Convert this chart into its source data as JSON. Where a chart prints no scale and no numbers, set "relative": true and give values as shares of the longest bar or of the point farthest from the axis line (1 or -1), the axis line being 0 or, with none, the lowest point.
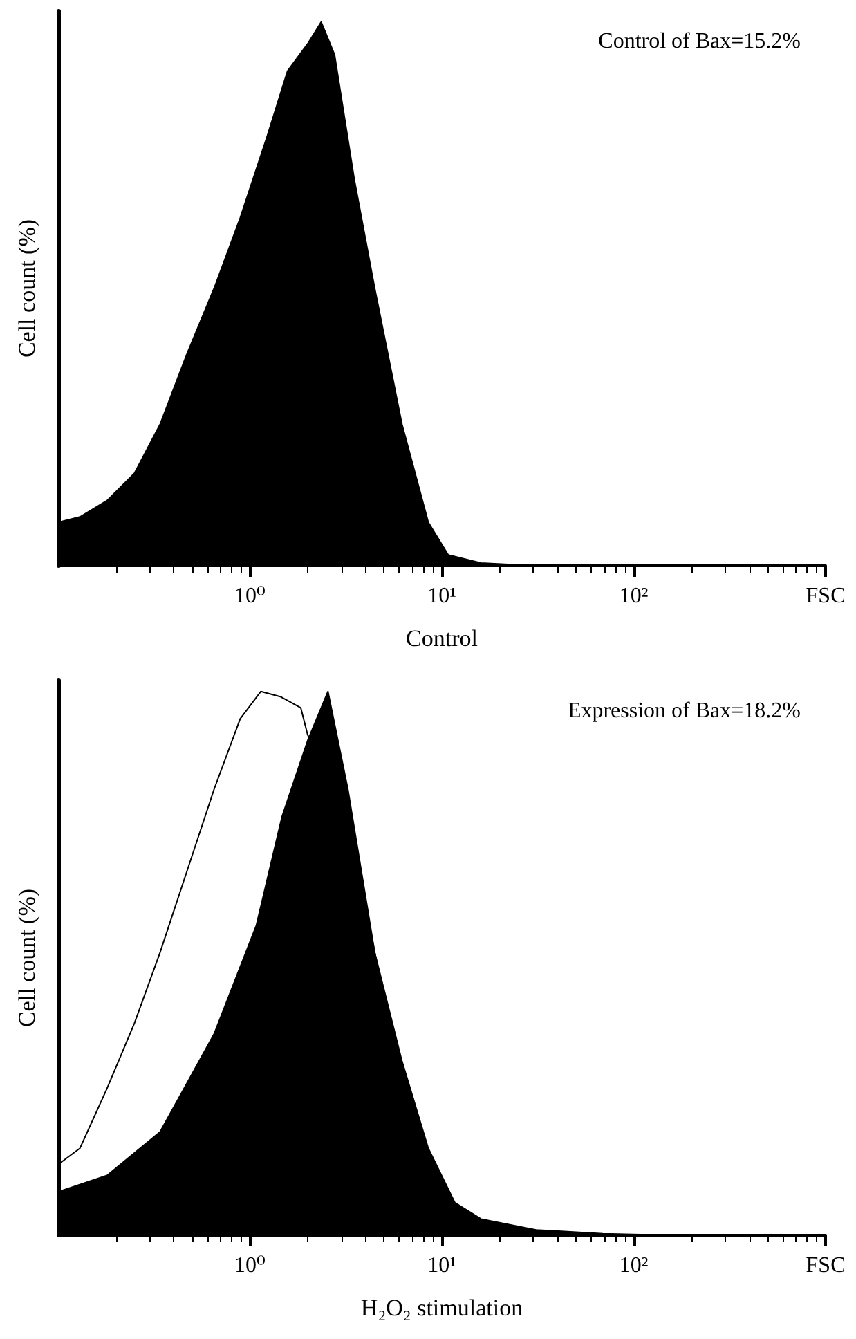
{
  "chart_data": [
    {
      "type": "area",
      "relative": true,
      "xlabel": "Control",
      "ylabel": "Cell count (%)",
      "annotations": [
        "Control of Bax=15.2%"
      ],
      "log": "x",
      "xlim": [
        0.1,
        1000
      ],
      "xticks": [
        {
          "value": 1,
          "label": "10⁰"
        },
        {
          "value": 10,
          "label": "10¹"
        },
        {
          "value": 100,
          "label": "10²"
        },
        {
          "value": 1000,
          "label": "FSC"
        }
      ],
      "grid": false,
      "series": [
        {
          "color": "#000000",
          "x": [
            0.1,
            0.13,
            0.18,
            0.25,
            0.34,
            0.47,
            0.65,
            0.89,
            1.23,
            1.57,
            2.0,
            2.35,
            2.76,
            3.5,
            4.47,
            6.2,
            8.5,
            10.8,
            16,
            31,
            1000
          ],
          "values": [
            0.08,
            0.09,
            0.12,
            0.17,
            0.26,
            0.39,
            0.51,
            0.64,
            0.79,
            0.91,
            0.96,
            1.0,
            0.94,
            0.71,
            0.51,
            0.26,
            0.08,
            0.02,
            0.005,
            0,
            0
          ]
        }
      ]
    },
    {
      "type": "area",
      "relative": true,
      "xlabel": "H₂O₂ stimulation",
      "ylabel": "Cell count (%)",
      "annotations": [
        "Expression of Bax=18.2%"
      ],
      "log": "x",
      "xlim": [
        0.1,
        1000
      ],
      "xticks": [
        {
          "value": 1,
          "label": "10⁰"
        },
        {
          "value": 10,
          "label": "10¹"
        },
        {
          "value": 100,
          "label": "10²"
        },
        {
          "value": 1000,
          "label": "FSC"
        }
      ],
      "grid": false,
      "series": [
        {
          "type": "line",
          "color": "#000000",
          "x": [
            0.1,
            0.13,
            0.18,
            0.25,
            0.34,
            0.47,
            0.65,
            0.89,
            1.14,
            1.45,
            1.84,
            2.0,
            3.24,
            4.47,
            6.2,
            8.5,
            11.7,
            16,
            31
          ],
          "values": [
            0.13,
            0.16,
            0.27,
            0.39,
            0.52,
            0.67,
            0.82,
            0.95,
            1.0,
            0.99,
            0.97,
            0.92,
            0.77,
            0.52,
            0.29,
            0.14,
            0.05,
            0.02,
            0.005
          ]
        },
        {
          "color": "#000000",
          "x": [
            0.1,
            0.18,
            0.34,
            0.65,
            1.08,
            1.47,
            2.0,
            2.55,
            3.24,
            4.47,
            6.2,
            8.5,
            11.7,
            16,
            31,
            69,
            155,
            1000
          ],
          "values": [
            0.08,
            0.11,
            0.19,
            0.37,
            0.57,
            0.77,
            0.91,
            1.0,
            0.82,
            0.52,
            0.32,
            0.16,
            0.06,
            0.03,
            0.01,
            0.003,
            0,
            0
          ]
        }
      ]
    }
  ]
}
